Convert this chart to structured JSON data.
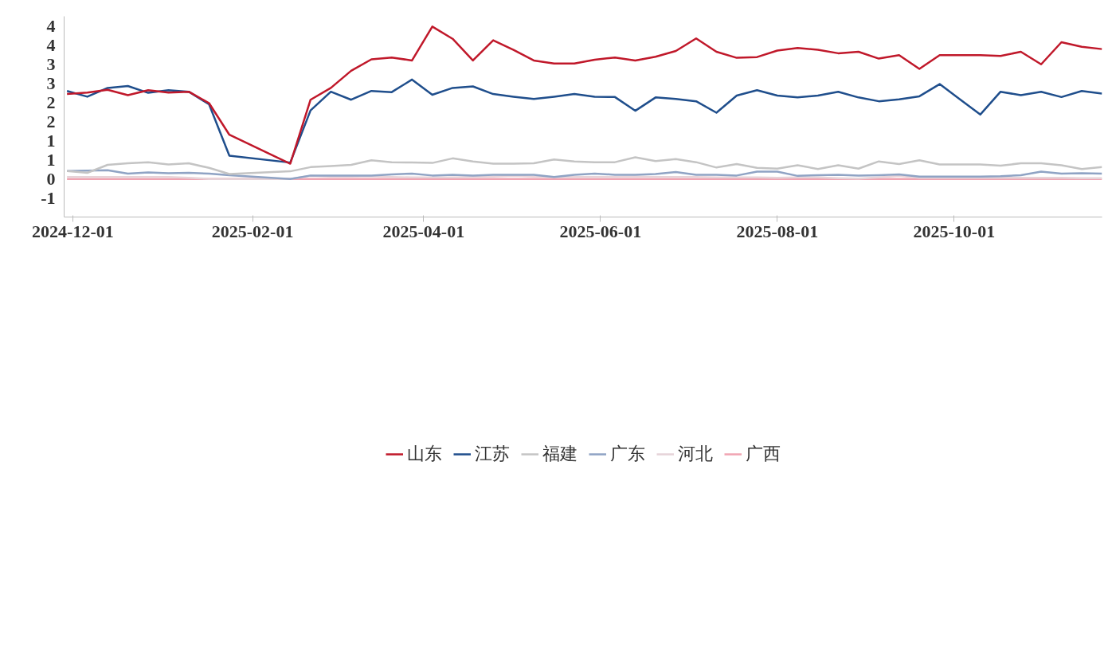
{
  "chart_data": {
    "type": "line",
    "x": [
      "2024-11-29",
      "2024-12-06",
      "2024-12-13",
      "2024-12-20",
      "2024-12-27",
      "2025-01-03",
      "2025-01-10",
      "2025-01-17",
      "2025-01-24",
      "2025-02-14",
      "2025-02-21",
      "2025-02-28",
      "2025-03-07",
      "2025-03-14",
      "2025-03-21",
      "2025-03-28",
      "2025-04-04",
      "2025-04-11",
      "2025-04-18",
      "2025-04-25",
      "2025-05-02",
      "2025-05-09",
      "2025-05-16",
      "2025-05-23",
      "2025-05-30",
      "2025-06-06",
      "2025-06-13",
      "2025-06-20",
      "2025-06-27",
      "2025-07-04",
      "2025-07-11",
      "2025-07-18",
      "2025-07-25",
      "2025-08-01",
      "2025-08-08",
      "2025-08-15",
      "2025-08-22",
      "2025-08-29",
      "2025-09-05",
      "2025-09-12",
      "2025-09-19",
      "2025-09-26",
      "2025-10-03",
      "2025-10-10",
      "2025-10-17",
      "2025-10-24",
      "2025-10-31",
      "2025-11-07",
      "2025-11-14",
      "2025-11-21"
    ],
    "series": [
      {
        "name": "山东",
        "color": "#c0182a",
        "values": [
          2.23,
          2.27,
          2.34,
          2.2,
          2.33,
          2.27,
          2.29,
          1.99,
          1.16,
          0.4,
          2.08,
          2.39,
          2.84,
          3.14,
          3.19,
          3.11,
          4.0,
          3.68,
          3.11,
          3.64,
          3.39,
          3.11,
          3.03,
          3.03,
          3.13,
          3.19,
          3.11,
          3.21,
          3.36,
          3.69,
          3.34,
          3.18,
          3.2,
          3.37,
          3.44,
          3.39,
          3.3,
          3.34,
          3.16,
          3.25,
          2.89,
          3.25,
          3.25,
          3.25,
          3.23,
          3.34,
          3.01,
          3.59,
          3.47,
          3.41
        ]
      },
      {
        "name": "江苏",
        "color": "#1f4e8c",
        "values": [
          2.31,
          2.16,
          2.39,
          2.44,
          2.26,
          2.33,
          2.29,
          1.96,
          0.61,
          0.43,
          1.8,
          2.29,
          2.08,
          2.31,
          2.28,
          2.61,
          2.21,
          2.39,
          2.43,
          2.23,
          2.16,
          2.1,
          2.16,
          2.23,
          2.16,
          2.15,
          1.79,
          2.14,
          2.1,
          2.04,
          1.74,
          2.19,
          2.33,
          2.19,
          2.14,
          2.19,
          2.29,
          2.14,
          2.04,
          2.09,
          2.17,
          2.49,
          2.09,
          1.69,
          2.29,
          2.2,
          2.29,
          2.15,
          2.31,
          2.24
        ]
      },
      {
        "name": "福建",
        "color": "#c4c4c4",
        "values": [
          0.21,
          0.16,
          0.37,
          0.41,
          0.44,
          0.38,
          0.41,
          0.29,
          0.13,
          0.2,
          0.31,
          0.34,
          0.37,
          0.49,
          0.44,
          0.43,
          0.42,
          0.54,
          0.46,
          0.4,
          0.4,
          0.41,
          0.51,
          0.46,
          0.44,
          0.44,
          0.57,
          0.47,
          0.52,
          0.44,
          0.3,
          0.39,
          0.29,
          0.27,
          0.36,
          0.26,
          0.36,
          0.27,
          0.46,
          0.39,
          0.49,
          0.38,
          0.38,
          0.38,
          0.35,
          0.41,
          0.41,
          0.36,
          0.26,
          0.31
        ]
      },
      {
        "name": "广东",
        "color": "#8fa3c4",
        "values": [
          0.21,
          0.22,
          0.23,
          0.14,
          0.17,
          0.15,
          0.16,
          0.14,
          0.1,
          0.0,
          0.09,
          0.09,
          0.09,
          0.09,
          0.12,
          0.14,
          0.09,
          0.11,
          0.09,
          0.11,
          0.11,
          0.11,
          0.05,
          0.11,
          0.14,
          0.11,
          0.11,
          0.13,
          0.18,
          0.11,
          0.11,
          0.09,
          0.19,
          0.19,
          0.08,
          0.1,
          0.11,
          0.09,
          0.1,
          0.12,
          0.06,
          0.06,
          0.06,
          0.06,
          0.07,
          0.1,
          0.19,
          0.14,
          0.15,
          0.14
        ]
      },
      {
        "name": "河北",
        "color": "#e6d3d8",
        "values": [
          0.05,
          0.05,
          0.05,
          0.05,
          0.05,
          0.05,
          0.03,
          0.0,
          0.0,
          0.0,
          0.08,
          0.06,
          0.06,
          0.07,
          0.05,
          0.04,
          0.04,
          0.04,
          0.05,
          0.06,
          0.08,
          0.06,
          0.05,
          0.05,
          0.05,
          0.05,
          0.06,
          0.05,
          0.05,
          0.05,
          0.04,
          0.04,
          0.04,
          0.03,
          0.04,
          0.04,
          0.02,
          0.01,
          0.04,
          0.08,
          0.03,
          0.03,
          0.03,
          0.03,
          0.03,
          0.03,
          0.03,
          0.03,
          0.02,
          0.02
        ]
      },
      {
        "name": "广西",
        "color": "#f0a4b2",
        "values": [
          0.0,
          0.0,
          0.0,
          0.0,
          0.0,
          0.0,
          0.0,
          0.0,
          0.0,
          0.0,
          0.0,
          0.0,
          0.0,
          0.0,
          0.0,
          0.0,
          0.0,
          0.0,
          0.0,
          0.0,
          0.0,
          0.0,
          0.0,
          0.0,
          0.0,
          0.0,
          0.0,
          0.0,
          0.0,
          0.0,
          0.0,
          0.0,
          0.0,
          0.0,
          0.0,
          0.0,
          0.0,
          0.0,
          0.0,
          0.0,
          0.0,
          0.0,
          0.0,
          0.0,
          0.0,
          0.0,
          0.0,
          0.0,
          0.0,
          0.0
        ]
      }
    ],
    "xlim": [
      "2024-11-28",
      "2025-11-21"
    ],
    "xticks": [
      "2024-12-01",
      "2025-02-01",
      "2025-04-01",
      "2025-06-01",
      "2025-08-01",
      "2025-10-01"
    ],
    "ylim": [
      -1,
      4.27
    ],
    "yticks": [
      {
        "value": -0.5,
        "label": "-1"
      },
      0,
      {
        "value": 0.5,
        "label": "1"
      },
      1,
      {
        "value": 1.5,
        "label": "2"
      },
      2,
      {
        "value": 2.5,
        "label": "3"
      },
      3,
      {
        "value": 3.5,
        "label": "4"
      },
      4
    ],
    "grid": false,
    "legend": "bottom",
    "line_style": "solid"
  }
}
